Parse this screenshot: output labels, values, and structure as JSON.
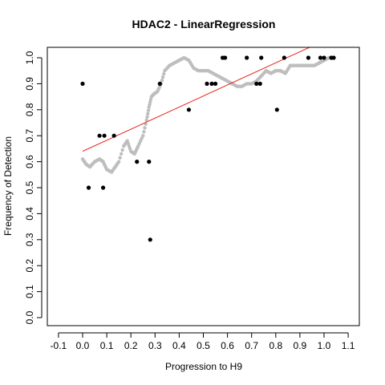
{
  "chart_data": {
    "type": "scatter",
    "title": "HDAC2 - LinearRegression",
    "xlabel": "Progression to H9",
    "ylabel": "Frequency of Detection",
    "xlim": [
      -0.1,
      1.1
    ],
    "ylim": [
      0.0,
      1.0
    ],
    "x_ticks": [
      "-0.1",
      "0.0",
      "0.1",
      "0.2",
      "0.3",
      "0.4",
      "0.5",
      "0.6",
      "0.7",
      "0.8",
      "0.9",
      "1.0",
      "1.1"
    ],
    "y_ticks": [
      "0.0",
      "0.1",
      "0.2",
      "0.3",
      "0.4",
      "0.5",
      "0.6",
      "0.7",
      "0.8",
      "0.9",
      "1.0"
    ],
    "grid": false,
    "colors": {
      "observed": "#000000",
      "smoothed": "#bebebe",
      "fit": "#e8261f"
    },
    "series": [
      {
        "type": "scatter",
        "x": [
          0.0,
          0.025,
          0.07,
          0.085,
          0.09,
          0.13,
          0.225,
          0.275,
          0.28,
          0.32,
          0.44,
          0.515,
          0.535,
          0.55,
          0.58,
          0.59,
          0.68,
          0.72,
          0.735,
          0.74,
          0.805,
          0.835,
          0.935,
          0.985,
          1.0,
          1.03,
          1.04
        ],
        "y": [
          0.9,
          0.5,
          0.7,
          0.5,
          0.7,
          0.7,
          0.6,
          0.6,
          0.3,
          0.9,
          0.8,
          0.9,
          0.9,
          0.9,
          1.0,
          1.0,
          1.0,
          0.9,
          0.9,
          1.0,
          0.8,
          1.0,
          1.0,
          1.0,
          1.0,
          1.0,
          1.0
        ]
      },
      {
        "type": "line",
        "x": [
          0.0,
          0.015,
          0.03,
          0.05,
          0.07,
          0.085,
          0.1,
          0.12,
          0.135,
          0.15,
          0.17,
          0.185,
          0.2,
          0.215,
          0.23,
          0.25,
          0.265,
          0.275,
          0.285,
          0.295,
          0.31,
          0.325,
          0.34,
          0.36,
          0.38,
          0.4,
          0.42,
          0.44,
          0.46,
          0.48,
          0.5,
          0.52,
          0.54,
          0.56,
          0.58,
          0.6,
          0.62,
          0.64,
          0.66,
          0.68,
          0.7,
          0.72,
          0.74,
          0.76,
          0.78,
          0.8,
          0.82,
          0.84,
          0.86,
          0.88,
          0.9,
          0.92,
          0.94,
          0.96,
          0.98,
          1.0,
          1.02,
          1.04
        ],
        "y": [
          0.61,
          0.59,
          0.58,
          0.6,
          0.61,
          0.6,
          0.57,
          0.56,
          0.58,
          0.6,
          0.66,
          0.68,
          0.64,
          0.63,
          0.66,
          0.7,
          0.76,
          0.81,
          0.85,
          0.86,
          0.87,
          0.9,
          0.95,
          0.97,
          0.98,
          0.99,
          1.0,
          0.99,
          0.96,
          0.95,
          0.95,
          0.95,
          0.94,
          0.93,
          0.92,
          0.91,
          0.9,
          0.89,
          0.89,
          0.9,
          0.9,
          0.91,
          0.93,
          0.95,
          0.94,
          0.95,
          0.95,
          0.94,
          0.97,
          0.97,
          0.97,
          0.97,
          0.97,
          0.97,
          0.98,
          0.99,
          1.0,
          1.0
        ]
      },
      {
        "type": "line",
        "x": [
          0.0,
          0.94
        ],
        "y": [
          0.64,
          1.04
        ]
      }
    ]
  }
}
